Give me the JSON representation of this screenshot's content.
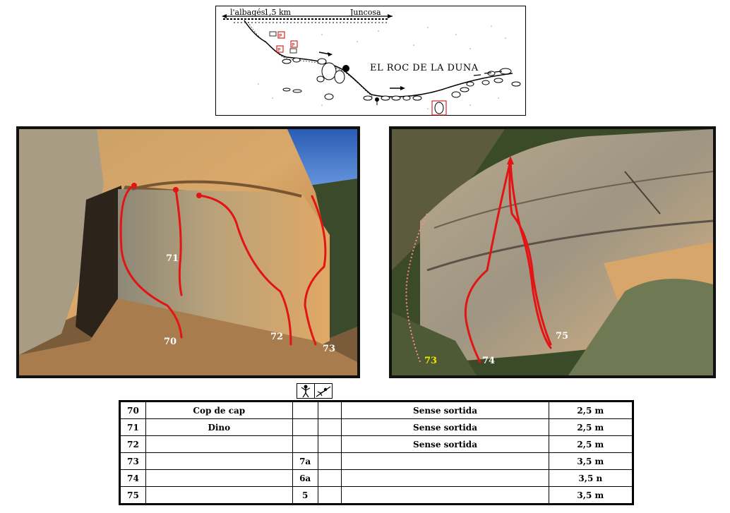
{
  "map": {
    "left_label": "l'albagés",
    "distance": "1,5 km",
    "right_label": "Juncosa",
    "title": "EL ROC DE LA DUNA",
    "parking_symbol": "P"
  },
  "photo_left": {
    "labels": [
      "70",
      "71",
      "72",
      "73"
    ]
  },
  "photo_right": {
    "labels": [
      "73",
      "74",
      "75"
    ]
  },
  "legend": {
    "icons": [
      "climber-icon",
      "fall-icon"
    ]
  },
  "routes": [
    {
      "num": "70",
      "name": "Cop de cap",
      "grade": "",
      "grade2": "",
      "note": "Sense sortida",
      "height": "2,5 m"
    },
    {
      "num": "71",
      "name": "Dino",
      "grade": "",
      "grade2": "",
      "note": "Sense sortida",
      "height": "2,5 m"
    },
    {
      "num": "72",
      "name": "",
      "grade": "",
      "grade2": "",
      "note": "Sense sortida",
      "height": "2,5 m"
    },
    {
      "num": "73",
      "name": "",
      "grade": "7a",
      "grade2": "",
      "note": "",
      "height": "3,5 m"
    },
    {
      "num": "74",
      "name": "",
      "grade": "6a",
      "grade2": "",
      "note": "",
      "height": "3,5 n"
    },
    {
      "num": "75",
      "name": "",
      "grade": "5",
      "grade2": "",
      "note": "",
      "height": "3,5 m"
    }
  ]
}
